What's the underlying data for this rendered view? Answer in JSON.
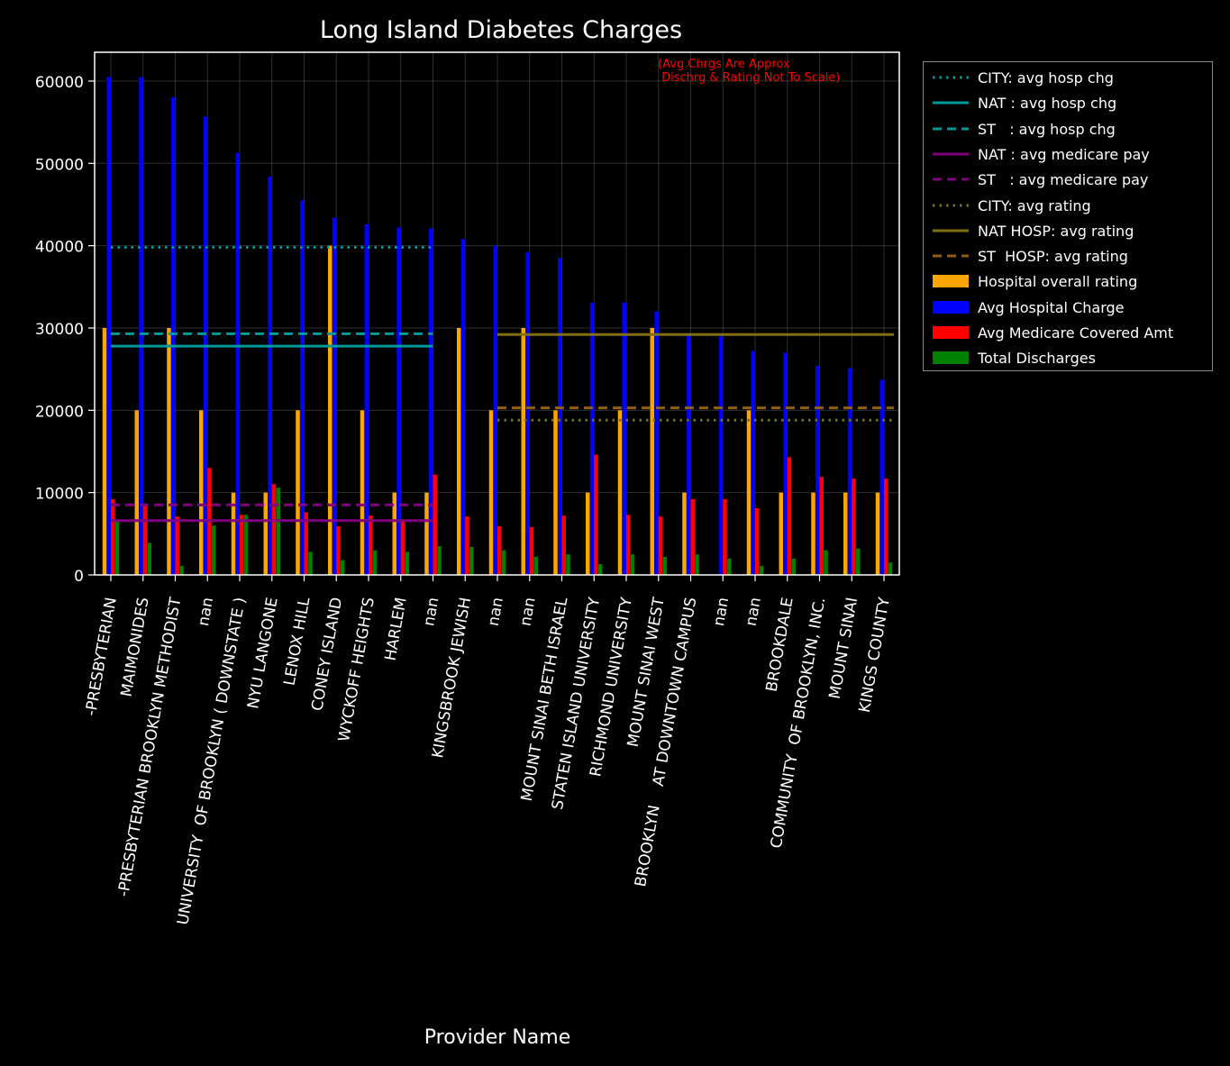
{
  "chart_data": {
    "type": "bar",
    "title": "Long Island Diabetes Charges",
    "xlabel": "Provider Name",
    "ylabel": "",
    "ylim": [
      0,
      63500
    ],
    "yticks": [
      0,
      10000,
      20000,
      30000,
      40000,
      50000,
      60000
    ],
    "grid": true,
    "legend_position": "outside-right",
    "annotation": "(Avg Chrgs Are Approx\n Dischrg & Rating Not To Scale)",
    "annotation_color": "#ff0000",
    "categories": [
      "-PRESBYTERIAN",
      "MAIMONIDES",
      "-PRESBYTERIAN BROOKLYN METHODIST",
      "nan",
      "UNIVERSITY  OF BROOKLYN ( DOWNSTATE )",
      "NYU LANGONE",
      "LENOX HILL",
      "CONEY ISLAND",
      "WYCKOFF HEIGHTS",
      "HARLEM",
      "nan",
      "KINGSBROOK JEWISH",
      "nan",
      "nan",
      "MOUNT SINAI BETH ISRAEL",
      "STATEN ISLAND UNIVERSITY",
      "RICHMOND UNIVERSITY",
      "MOUNT SINAI WEST",
      "BROOKLYN    AT DOWNTOWN CAMPUS",
      "nan",
      "nan",
      "BROOKDALE",
      "COMMUNITY  OF BROOKLYN, INC.",
      "MOUNT SINAI",
      "KINGS COUNTY"
    ],
    "series": [
      {
        "name": "Hospital overall rating",
        "color": "#ffa500",
        "values": [
          30000,
          20000,
          30000,
          20000,
          10000,
          10000,
          20000,
          40000,
          20000,
          10000,
          10000,
          30000,
          20000,
          30000,
          20000,
          10000,
          20000,
          30000,
          10000,
          0,
          20000,
          10000,
          10000,
          10000,
          10000
        ]
      },
      {
        "name": "Avg Hospital Charge",
        "color": "#0000ff",
        "values": [
          60500,
          60500,
          58000,
          55700,
          51300,
          48400,
          45500,
          43400,
          42600,
          42200,
          42100,
          40800,
          40000,
          39200,
          38500,
          33100,
          33100,
          32000,
          29400,
          29000,
          27200,
          27000,
          25400,
          25100,
          23700
        ]
      },
      {
        "name": "Avg Medicare Covered Amt",
        "color": "#ff0000",
        "values": [
          9200,
          8400,
          7100,
          13000,
          7300,
          11000,
          7600,
          5900,
          7200,
          6700,
          12200,
          7100,
          5900,
          5800,
          7200,
          14600,
          7300,
          7100,
          9200,
          9200,
          8100,
          14300,
          11900,
          11700,
          11700
        ]
      },
      {
        "name": "Total Discharges",
        "color": "#008000",
        "values": [
          6600,
          3900,
          1100,
          6000,
          7300,
          10600,
          2800,
          1800,
          3000,
          2800,
          3500,
          3400,
          3000,
          2200,
          2500,
          1300,
          2500,
          2200,
          2500,
          2000,
          1100,
          2000,
          3000,
          3200,
          1500
        ]
      }
    ],
    "reference_lines": [
      {
        "name": "CITY: avg hosp chg",
        "color": "#009999",
        "style": "dotted",
        "value": 39800,
        "from_category": 0,
        "to_category": 10
      },
      {
        "name": "NAT : avg hosp chg",
        "color": "#009999",
        "style": "solid",
        "value": 27800,
        "from_category": 0,
        "to_category": 10
      },
      {
        "name": "ST   : avg hosp chg",
        "color": "#009999",
        "style": "dashed",
        "value": 29300,
        "from_category": 0,
        "to_category": 10
      },
      {
        "name": "NAT : avg medicare pay",
        "color": "#800080",
        "style": "solid",
        "value": 6600,
        "from_category": 0,
        "to_category": 10
      },
      {
        "name": "ST   : avg medicare pay",
        "color": "#800080",
        "style": "dashed",
        "value": 8500,
        "from_category": 0,
        "to_category": 10
      },
      {
        "name": "CITY: avg rating",
        "color": "#707020",
        "style": "dotted",
        "value": 18800,
        "from_category": 12,
        "to_category": 24
      },
      {
        "name": "NAT HOSP: avg rating",
        "color": "#807010",
        "style": "solid",
        "value": 29200,
        "from_category": 12,
        "to_category": 24
      },
      {
        "name": "ST  HOSP: avg rating",
        "color": "#905f10",
        "style": "dashed",
        "value": 20300,
        "from_category": 12,
        "to_category": 24
      }
    ]
  }
}
